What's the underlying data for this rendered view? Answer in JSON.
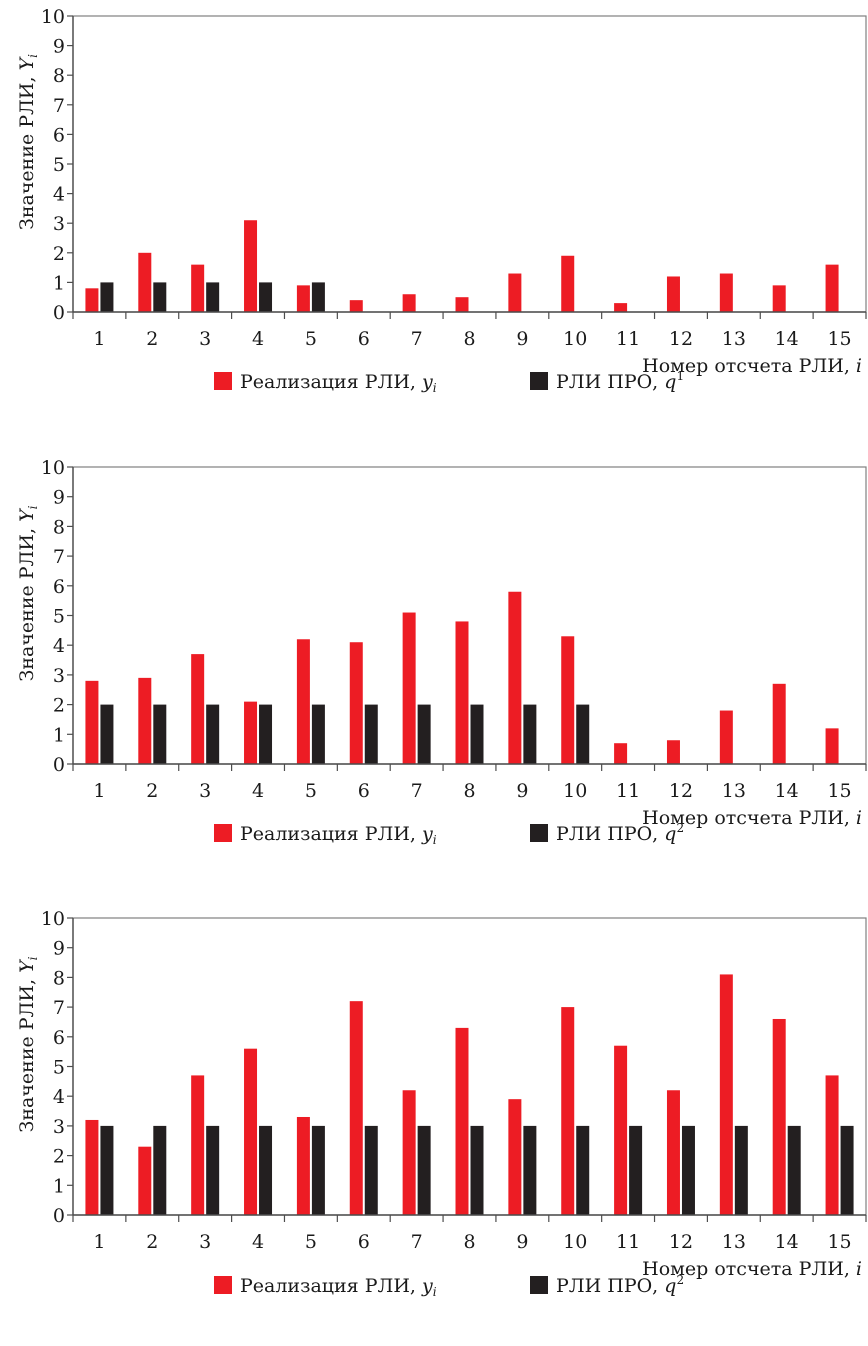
{
  "colors": {
    "realization": "#ed1c24",
    "reference": "#231f20",
    "axis": "#4d4d4d",
    "frame": "#808080"
  },
  "chart_data": [
    {
      "type": "bar",
      "categories": [
        "1",
        "2",
        "3",
        "4",
        "5",
        "6",
        "7",
        "8",
        "9",
        "10",
        "11",
        "12",
        "13",
        "14",
        "15"
      ],
      "series": [
        {
          "name": "Реализация РЛИ, yᵢ",
          "values": [
            0.8,
            2.0,
            1.6,
            3.1,
            0.9,
            0.4,
            0.6,
            0.5,
            1.3,
            1.9,
            0.3,
            1.2,
            1.3,
            0.9,
            1.6
          ]
        },
        {
          "name": "РЛИ ПРО, q¹",
          "values": [
            1,
            1,
            1,
            1,
            1,
            0,
            0,
            0,
            0,
            0,
            0,
            0,
            0,
            0,
            0
          ]
        }
      ],
      "yticks": [
        "0",
        "1",
        "2",
        "3",
        "4",
        "5",
        "6",
        "7",
        "8",
        "9",
        "10"
      ],
      "ylim": [
        0,
        10
      ],
      "xlabel": "Номер отсчета РЛИ, i",
      "ylabel": "Значение РЛИ, Yᵢ",
      "legend_position": "bottom-center"
    },
    {
      "type": "bar",
      "categories": [
        "1",
        "2",
        "3",
        "4",
        "5",
        "6",
        "7",
        "8",
        "9",
        "10",
        "11",
        "12",
        "13",
        "14",
        "15"
      ],
      "series": [
        {
          "name": "Реализация РЛИ, yᵢ",
          "values": [
            2.8,
            2.9,
            3.7,
            2.1,
            4.2,
            4.1,
            5.1,
            4.8,
            5.8,
            4.3,
            0.7,
            0.8,
            1.8,
            2.7,
            1.2
          ]
        },
        {
          "name": "РЛИ ПРО, q²",
          "values": [
            2,
            2,
            2,
            2,
            2,
            2,
            2,
            2,
            2,
            2,
            0,
            0,
            0,
            0,
            0
          ]
        }
      ],
      "yticks": [
        "0",
        "1",
        "2",
        "3",
        "4",
        "5",
        "6",
        "7",
        "8",
        "9",
        "10"
      ],
      "ylim": [
        0,
        10
      ],
      "xlabel": "Номер отсчета РЛИ, i",
      "ylabel": "Значение РЛИ, Yᵢ",
      "legend_position": "bottom-center"
    },
    {
      "type": "bar",
      "categories": [
        "1",
        "2",
        "3",
        "4",
        "5",
        "6",
        "7",
        "8",
        "9",
        "10",
        "11",
        "12",
        "13",
        "14",
        "15"
      ],
      "series": [
        {
          "name": "Реализация РЛИ, yᵢ",
          "values": [
            3.2,
            2.3,
            4.7,
            5.6,
            3.3,
            7.2,
            4.2,
            6.3,
            3.9,
            7.0,
            5.7,
            4.2,
            8.1,
            6.6,
            4.7
          ]
        },
        {
          "name": "РЛИ ПРО, q²",
          "values": [
            3,
            3,
            3,
            3,
            3,
            3,
            3,
            3,
            3,
            3,
            3,
            3,
            3,
            3,
            3
          ]
        }
      ],
      "yticks": [
        "0",
        "1",
        "2",
        "3",
        "4",
        "5",
        "6",
        "7",
        "8",
        "9",
        "10"
      ],
      "ylim": [
        0,
        10
      ],
      "xlabel": "Номер отсчета РЛИ, i",
      "ylabel": "Значение РЛИ, Yᵢ",
      "legend_position": "bottom-center"
    }
  ]
}
